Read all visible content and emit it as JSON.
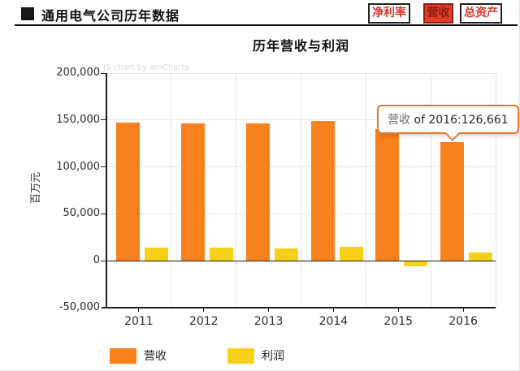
{
  "header": {
    "title": "通用电气公司历年数据",
    "buttons": [
      {
        "label": "净利率",
        "active": false
      },
      {
        "label": "营收",
        "active": true
      },
      {
        "label": "总资产",
        "active": false
      }
    ],
    "accent_red": "#D8382A",
    "active_button_bg": "#E23B2C"
  },
  "chart": {
    "title": "历年营收与利润",
    "watermark": "JS chart by amCharts",
    "tooltip": {
      "series": "营收",
      "rest": " of 2016:126,661",
      "border_color": "#E5762E"
    }
  },
  "chart_data": {
    "type": "bar",
    "title": "历年营收与利润",
    "categories": [
      "2011",
      "2012",
      "2013",
      "2014",
      "2015",
      "2016"
    ],
    "series": [
      {
        "name": "营收",
        "color": "#F7811D",
        "values": [
          147288,
          146684,
          146045,
          148589,
          140389,
          126661
        ]
      },
      {
        "name": "利润",
        "color": "#F7D117",
        "values": [
          14151,
          13641,
          13057,
          15233,
          -6126,
          8831
        ]
      }
    ],
    "xlabel": "",
    "ylabel": "百万元",
    "ylim": [
      -50000,
      200000
    ],
    "ytick_step": 50000,
    "yticks": [
      "200,000",
      "150,000",
      "100,000",
      "50,000",
      "0",
      "-50,000"
    ],
    "grid": true,
    "legend_position": "bottom",
    "highlighted_point": {
      "series": "营收",
      "category": "2016",
      "display_value": "126,661"
    }
  }
}
